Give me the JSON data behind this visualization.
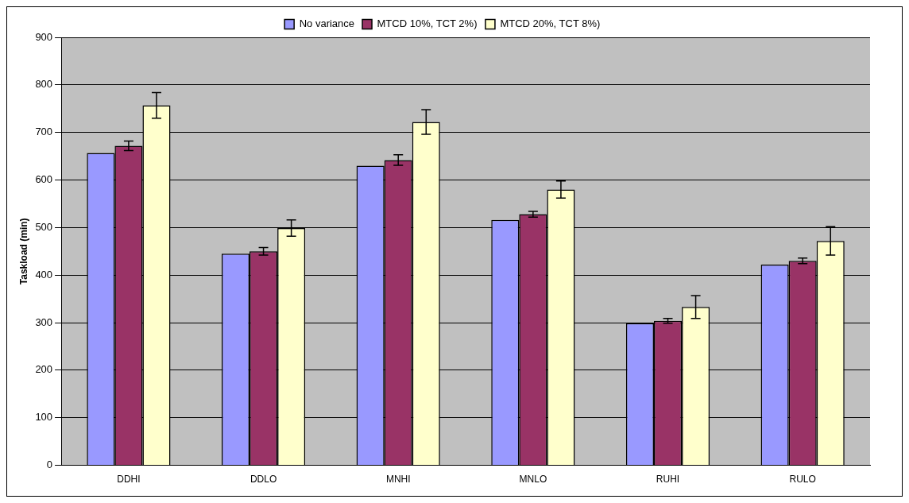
{
  "chart_data": {
    "type": "bar",
    "ylabel": "Taskload (min)",
    "categories": [
      "DDHI",
      "DDLO",
      "MNHI",
      "MNLO",
      "RUHI",
      "RULO"
    ],
    "series": [
      {
        "name": "No variance",
        "color": "#9999ff",
        "values": [
          657,
          445,
          630,
          516,
          299,
          422
        ]
      },
      {
        "name": "MTCD 10%, TCT 2%)",
        "color": "#993366",
        "values": [
          672,
          450,
          642,
          528,
          304,
          430
        ],
        "errors": [
          10,
          8,
          11,
          6,
          5,
          6
        ]
      },
      {
        "name": "MTCD 20%, TCT 8%)",
        "color": "#ffffcc",
        "values": [
          757,
          499,
          722,
          580,
          333,
          472
        ],
        "errors": [
          27,
          17,
          26,
          18,
          24,
          30
        ]
      }
    ],
    "ylim": [
      0,
      900
    ],
    "yticks": [
      0,
      100,
      200,
      300,
      400,
      500,
      600,
      700,
      800,
      900
    ],
    "grid": "y",
    "legend": "top"
  }
}
